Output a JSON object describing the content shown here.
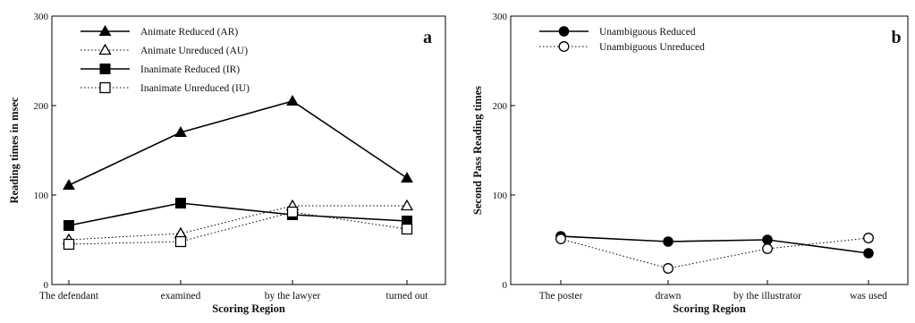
{
  "chart_data": [
    {
      "type": "line",
      "panel_label": "a",
      "xlabel": "Scoring Region",
      "ylabel": "Reading times in msec",
      "ylim": [
        0,
        300
      ],
      "yticks": [
        "0",
        "100",
        "200",
        "300"
      ],
      "categories": [
        "The defendant",
        "examined",
        "by the lawyer",
        "turned out"
      ],
      "legend_position": "top-left",
      "grid": false,
      "series": [
        {
          "name": "Animate Reduced (AR)",
          "values": [
            111,
            170,
            205,
            119
          ],
          "marker": "triangle",
          "filled": true,
          "dashed": false
        },
        {
          "name": "Animate Unreduced (AU)",
          "values": [
            50,
            57,
            88,
            88
          ],
          "marker": "triangle",
          "filled": false,
          "dashed": true
        },
        {
          "name": "Inanimate Reduced (IR)",
          "values": [
            66,
            91,
            78,
            71
          ],
          "marker": "square",
          "filled": true,
          "dashed": false
        },
        {
          "name": "Inanimate Unreduced (IU)",
          "values": [
            45,
            48,
            81,
            62
          ],
          "marker": "square",
          "filled": false,
          "dashed": true
        }
      ]
    },
    {
      "type": "line",
      "panel_label": "b",
      "xlabel": "Scoring Region",
      "ylabel": "Second Pass Reading times",
      "ylim": [
        0,
        300
      ],
      "yticks": [
        "0",
        "100",
        "200",
        "300"
      ],
      "categories": [
        "The poster",
        "drawn",
        "by the illustrator",
        "was used"
      ],
      "legend_position": "top-left",
      "grid": false,
      "series": [
        {
          "name": "Unambiguous Reduced",
          "values": [
            54,
            48,
            50,
            35
          ],
          "marker": "circle",
          "filled": true,
          "dashed": false
        },
        {
          "name": "Unambiguous Unreduced",
          "values": [
            51,
            18,
            40,
            52
          ],
          "marker": "circle",
          "filled": false,
          "dashed": true
        }
      ]
    }
  ]
}
